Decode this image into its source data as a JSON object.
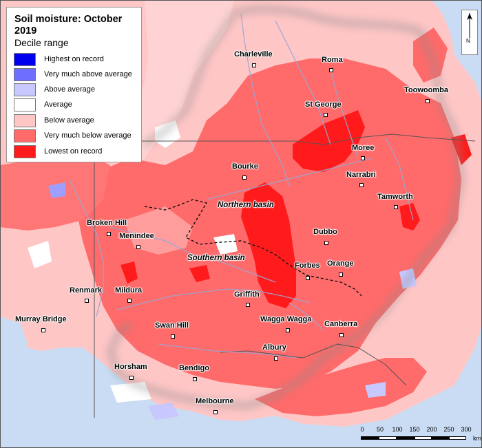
{
  "legend": {
    "title": "Soil moisture: October 2019",
    "subtitle": "Decile range",
    "items": [
      {
        "label": "Highest on record",
        "color": "#0000ee"
      },
      {
        "label": "Very much above average",
        "color": "#6f6fff"
      },
      {
        "label": "Above average",
        "color": "#c8c8ff"
      },
      {
        "label": "Average",
        "color": "#ffffff"
      },
      {
        "label": "Below average",
        "color": "#ffc6c6"
      },
      {
        "label": "Very much below average",
        "color": "#ff6a6a"
      },
      {
        "label": "Lowest on record",
        "color": "#ff1b1b"
      }
    ]
  },
  "basins": {
    "northern": "Northern basin",
    "southern": "Southern basin"
  },
  "towns": {
    "charleville": "Charleville",
    "roma": "Roma",
    "toowoomba": "Toowoomba",
    "st_george": "St George",
    "moree": "Moree",
    "narrabri": "Narrabri",
    "bourke": "Bourke",
    "tamworth": "Tamworth",
    "broken_hill": "Broken Hill",
    "menindee": "Menindee",
    "dubbo": "Dubbo",
    "forbes": "Forbes",
    "orange": "Orange",
    "renmark": "Renmark",
    "mildura": "Mildura",
    "griffith": "Griffith",
    "murray_bridge": "Murray Bridge",
    "swan_hill": "Swan Hill",
    "wagga_wagga": "Wagga Wagga",
    "canberra": "Canberra",
    "albury": "Albury",
    "horsham": "Horsham",
    "bendigo": "Bendigo",
    "melbourne": "Melbourne"
  },
  "scale": {
    "ticks": [
      "0",
      "50",
      "100",
      "150",
      "200",
      "250",
      "300"
    ],
    "unit": "km"
  },
  "north_arrow": {
    "label": "N",
    "icon": "north-arrow-icon"
  },
  "colors": {
    "ocean": "#c9dcf3",
    "land_outside": "#f1f1f1",
    "rivers": "#9aa6d4",
    "boundary": "#555555"
  }
}
